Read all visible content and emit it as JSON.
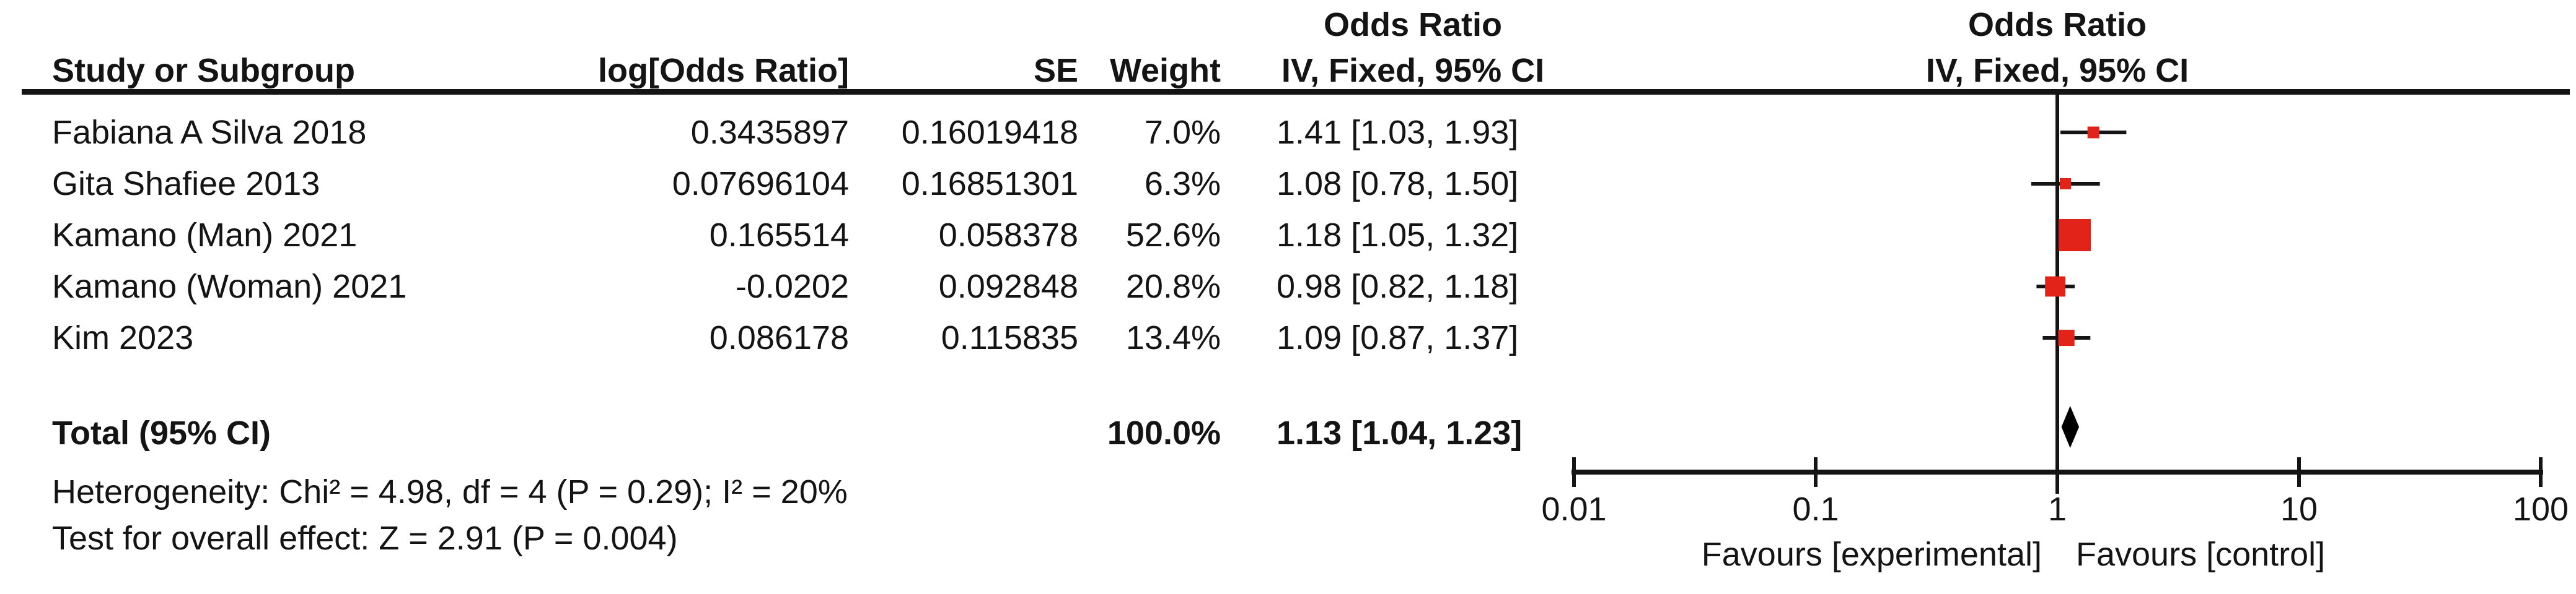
{
  "header": {
    "or_title_text_col": "Odds Ratio",
    "or_title_plot_col": "Odds Ratio",
    "study": "Study or Subgroup",
    "log_or": "log[Odds Ratio]",
    "se": "SE",
    "weight": "Weight",
    "method_text_col": "IV, Fixed, 95% CI",
    "method_plot_col": "IV, Fixed, 95% CI"
  },
  "rows": [
    {
      "study": "Fabiana A Silva 2018",
      "log_or": "0.3435897",
      "se": "0.16019418",
      "weight": "7.0%",
      "or_ci": "1.41 [1.03, 1.93]"
    },
    {
      "study": "Gita Shafiee 2013",
      "log_or": "0.07696104",
      "se": "0.16851301",
      "weight": "6.3%",
      "or_ci": "1.08 [0.78, 1.50]"
    },
    {
      "study": "Kamano (Man) 2021",
      "log_or": "0.165514",
      "se": "0.058378",
      "weight": "52.6%",
      "or_ci": "1.18 [1.05, 1.32]"
    },
    {
      "study": "Kamano (Woman) 2021",
      "log_or": "-0.0202",
      "se": "0.092848",
      "weight": "20.8%",
      "or_ci": "0.98 [0.82, 1.18]"
    },
    {
      "study": "Kim 2023",
      "log_or": "0.086178",
      "se": "0.115835",
      "weight": "13.4%",
      "or_ci": "1.09 [0.87, 1.37]"
    }
  ],
  "total": {
    "label": "Total (95% CI)",
    "weight": "100.0%",
    "or_ci": "1.13 [1.04, 1.23]"
  },
  "stats": {
    "heterogeneity": "Heterogeneity: Chi² = 4.98, df = 4 (P = 0.29); I² = 20%",
    "overall_effect": "Test for overall effect: Z = 2.91 (P = 0.004)"
  },
  "axis": {
    "tick_labels": [
      "0.01",
      "0.1",
      "1",
      "10",
      "100"
    ],
    "favours_left": "Favours [experimental]",
    "favours_right": "Favours [control]"
  },
  "colors": {
    "square": "#e2231a",
    "diamond": "#000000",
    "line": "#141414"
  },
  "chart_data": {
    "type": "scatter",
    "subtype": "forest-plot",
    "effect_measure": "Odds Ratio",
    "model": "IV, Fixed, 95% CI",
    "x_axis": {
      "scale": "log",
      "min": 0.01,
      "max": 100,
      "ticks": [
        0.01,
        0.1,
        1,
        10,
        100
      ]
    },
    "studies": [
      {
        "name": "Fabiana A Silva 2018",
        "log_or": 0.3435897,
        "se": 0.16019418,
        "weight_pct": 7.0,
        "or": 1.41,
        "ci_low": 1.03,
        "ci_high": 1.93
      },
      {
        "name": "Gita Shafiee 2013",
        "log_or": 0.07696104,
        "se": 0.16851301,
        "weight_pct": 6.3,
        "or": 1.08,
        "ci_low": 0.78,
        "ci_high": 1.5
      },
      {
        "name": "Kamano (Man) 2021",
        "log_or": 0.165514,
        "se": 0.058378,
        "weight_pct": 52.6,
        "or": 1.18,
        "ci_low": 1.05,
        "ci_high": 1.32
      },
      {
        "name": "Kamano (Woman) 2021",
        "log_or": -0.0202,
        "se": 0.092848,
        "weight_pct": 20.8,
        "or": 0.98,
        "ci_low": 0.82,
        "ci_high": 1.18
      },
      {
        "name": "Kim 2023",
        "log_or": 0.086178,
        "se": 0.115835,
        "weight_pct": 13.4,
        "or": 1.09,
        "ci_low": 0.87,
        "ci_high": 1.37
      }
    ],
    "total": {
      "or": 1.13,
      "ci_low": 1.04,
      "ci_high": 1.23,
      "weight_pct": 100.0
    },
    "heterogeneity": {
      "chi2": 4.98,
      "df": 4,
      "p": 0.29,
      "i2_pct": 20
    },
    "overall_effect": {
      "z": 2.91,
      "p": 0.004
    }
  }
}
